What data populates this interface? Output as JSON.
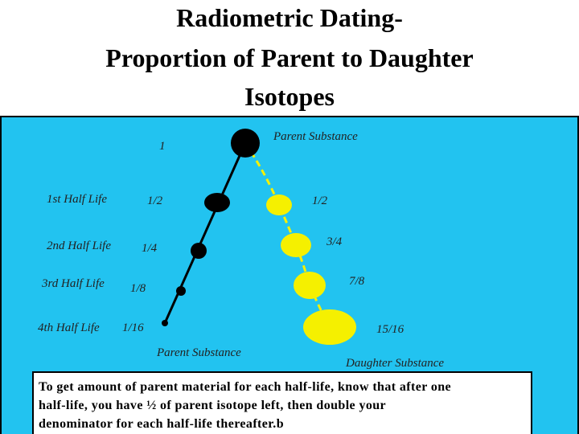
{
  "header": {
    "title": [
      "Radiometric Dating-",
      "Proportion of Parent to Daughter",
      "Isotopes"
    ]
  },
  "diagram": {
    "parent_top_label": "Parent Substance",
    "half_life_labels": [
      "1st Half Life",
      "2nd Half Life",
      "3rd Half Life",
      "4th Half Life"
    ],
    "parent_fractions": [
      "1",
      "1/2",
      "1/4",
      "1/8",
      "1/16"
    ],
    "daughter_fractions": [
      "1/2",
      "3/4",
      "7/8",
      "15/16"
    ],
    "parent_bottom_label": "Parent Substance",
    "daughter_bottom_label": "Daughter Substance"
  },
  "caption": {
    "lines": [
      "To get amount of parent material for each half-life, know that after one",
      "half-life, you have ½ of parent isotope left, then double your",
      "denominator for each half-life thereafter.b"
    ]
  }
}
